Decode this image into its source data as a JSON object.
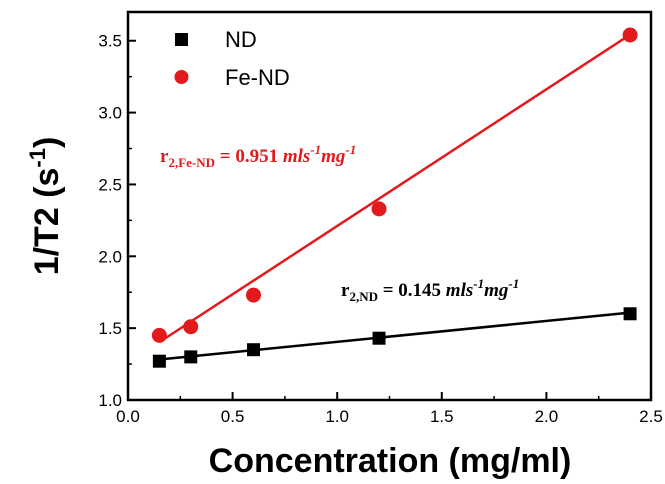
{
  "chart_data": {
    "type": "scatter",
    "xlabel": "Concentration (mg/ml)",
    "ylabel": {
      "main": "1/T2 (s",
      "sup": "-1",
      "close": ")"
    },
    "xlim": [
      0.0,
      2.5
    ],
    "ylim": [
      1.0,
      3.7
    ],
    "x_ticks": [
      "0.0",
      "0.5",
      "1.0",
      "1.5",
      "2.0",
      "2.5"
    ],
    "y_ticks": [
      "1.0",
      "1.5",
      "2.0",
      "2.5",
      "3.0",
      "3.5"
    ],
    "grid": false,
    "legend_position": "top-left",
    "series": [
      {
        "name": "ND",
        "marker": "square",
        "color": "#000000",
        "x": [
          0.15,
          0.3,
          0.6,
          1.2,
          2.4
        ],
        "y": [
          1.27,
          1.3,
          1.35,
          1.43,
          1.6
        ],
        "fit": {
          "slope": 0.145,
          "intercept": 1.26
        }
      },
      {
        "name": "Fe-ND",
        "marker": "circle",
        "color": "#e31a1c",
        "x": [
          0.15,
          0.3,
          0.6,
          1.2,
          2.4
        ],
        "y": [
          1.45,
          1.51,
          1.73,
          2.33,
          3.54
        ],
        "fit": {
          "slope": 0.951,
          "intercept": 1.26
        }
      }
    ],
    "annotations": [
      {
        "base": "r",
        "sub": "2,Fe-ND",
        "eq": " = 0.951 ",
        "unit1": "mls",
        "sup1": "-1",
        "unit2": "mg",
        "sup2": "-1",
        "color": "#e31a1c"
      },
      {
        "base": "r",
        "sub": "2,ND",
        "eq": " = 0.145 ",
        "unit1": "mls",
        "sup1": "-1",
        "unit2": "mg",
        "sup2": "-1",
        "color": "#000000"
      }
    ]
  }
}
